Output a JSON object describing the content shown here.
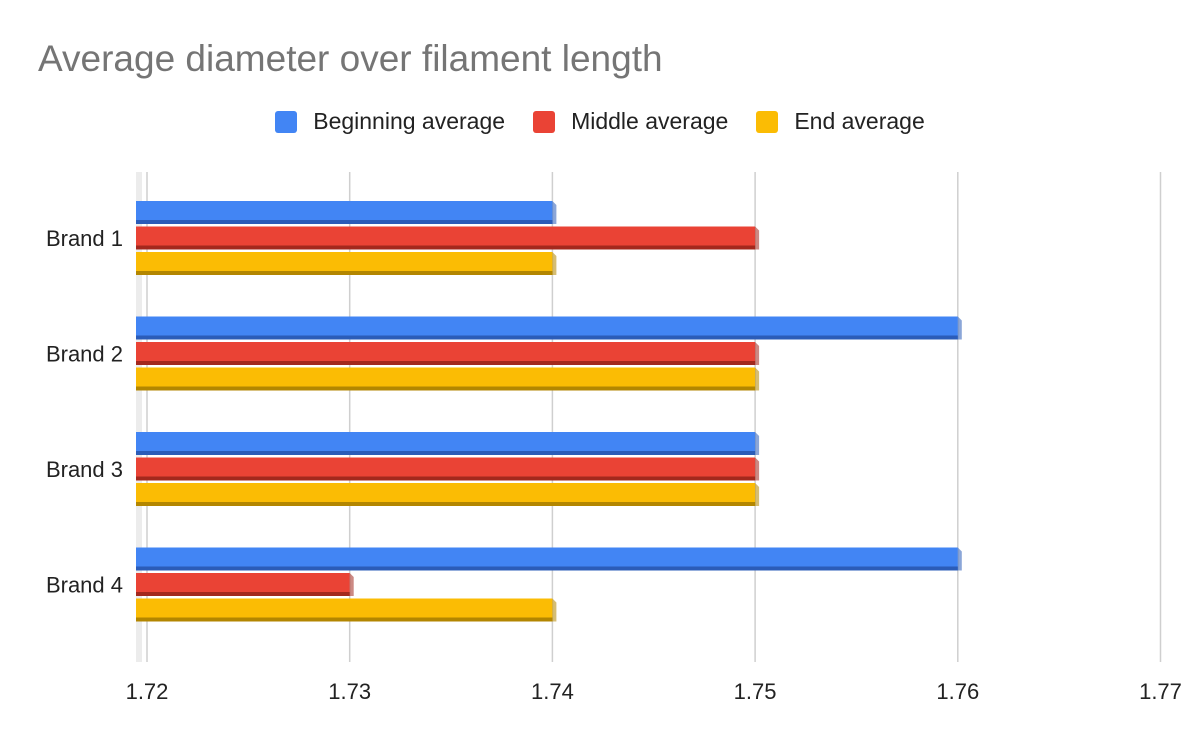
{
  "chart_data": {
    "type": "bar",
    "orientation": "horizontal",
    "title": "Average diameter over filament length",
    "categories": [
      "Brand 1",
      "Brand 2",
      "Brand 3",
      "Brand 4"
    ],
    "series": [
      {
        "name": "Beginning average",
        "color": "#4285F4",
        "shade": "#2B5CB8",
        "values": [
          1.74,
          1.76,
          1.75,
          1.76
        ]
      },
      {
        "name": "Middle average",
        "color": "#EA4335",
        "shade": "#A3281D",
        "values": [
          1.75,
          1.75,
          1.75,
          1.73
        ]
      },
      {
        "name": "End average",
        "color": "#FBBC04",
        "shade": "#B38600",
        "values": [
          1.74,
          1.75,
          1.75,
          1.74
        ]
      }
    ],
    "xlim": [
      1.72,
      1.77
    ],
    "xticks": [
      "1.72",
      "1.73",
      "1.74",
      "1.75",
      "1.76",
      "1.77"
    ],
    "grid": true,
    "legend_position": "top"
  }
}
